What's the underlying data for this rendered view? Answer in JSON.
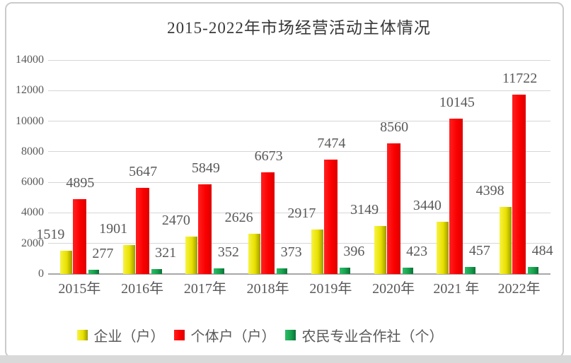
{
  "window": {
    "border_color": "#cbcbcb",
    "bottom_strip_color": "#d9d9d9",
    "background_color": "#ffffff"
  },
  "chart_data": {
    "type": "bar",
    "title": "2015-2022年市场经营活动主体情况",
    "title_color": "#383838",
    "categories": [
      "2015年",
      "2016年",
      "2017年",
      "2018年",
      "2019年",
      "2020年",
      "2021 年",
      "2022年"
    ],
    "series": [
      {
        "name": "企业（户）",
        "values": [
          1519,
          1901,
          2470,
          2626,
          2917,
          3149,
          3440,
          4398
        ],
        "color_start": "#f7f344",
        "color_mid": "#e8e000",
        "color_end": "#9c9a00"
      },
      {
        "name": "个体户（户）",
        "values": [
          4895,
          5647,
          5849,
          6673,
          7474,
          8560,
          10145,
          11722
        ],
        "color_start": "#ff2121",
        "color_mid": "#fb0000",
        "color_end": "#de0000"
      },
      {
        "name": "农民专业合作社（个）",
        "values": [
          277,
          321,
          352,
          373,
          396,
          423,
          457,
          484
        ],
        "color_start": "#2fbc69",
        "color_mid": "#16a14e",
        "color_end": "#0d7038"
      }
    ],
    "ylim": [
      0,
      14000
    ],
    "ytick_step": 2000,
    "yticks": [
      "0",
      "2000",
      "4000",
      "6000",
      "8000",
      "10000",
      "12000",
      "14000"
    ],
    "grid": true,
    "grid_color": "#d6d6d6",
    "axis_color": "#a8a8a8",
    "value_label_color": "#595959",
    "tick_label_color": "#595959",
    "legend_position": "bottom"
  }
}
